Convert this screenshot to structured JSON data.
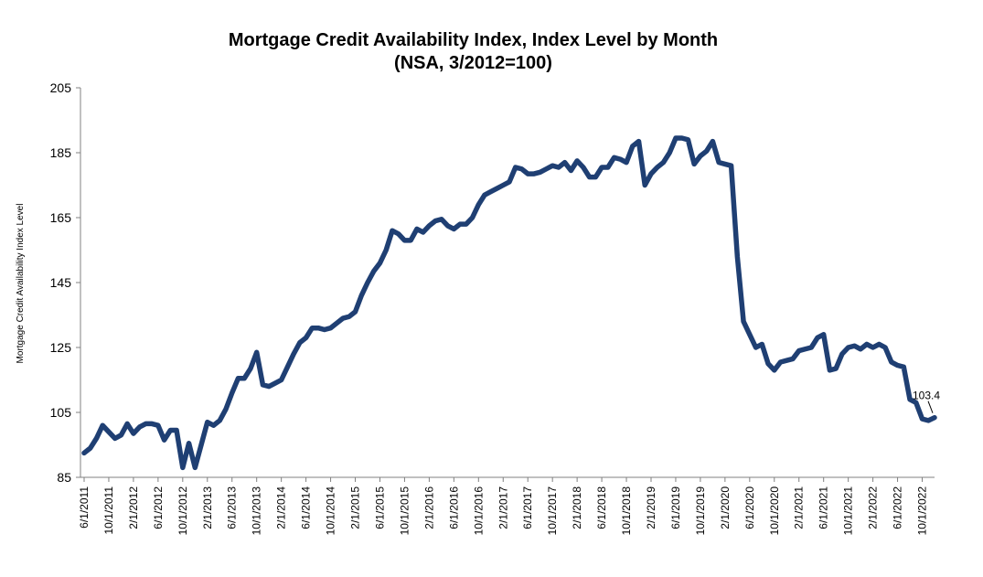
{
  "chart_data": {
    "type": "line",
    "title": "Mortgage Credit Availability Index, Index Level by Month",
    "subtitle": "(NSA, 3/2012=100)",
    "ylabel": "Mortgage Credit Availability Index Level",
    "xlabel": "",
    "ylim": [
      85,
      205
    ],
    "yticks": [
      85,
      105,
      125,
      145,
      165,
      185,
      205
    ],
    "x_start": "6/1/2011",
    "xtick_labels": [
      "6/1/2011",
      "10/1/2011",
      "2/1/2012",
      "6/1/2012",
      "10/1/2012",
      "2/1/2013",
      "6/1/2013",
      "10/1/2013",
      "2/1/2014",
      "6/1/2014",
      "10/1/2014",
      "2/1/2015",
      "6/1/2015",
      "10/1/2015",
      "2/1/2016",
      "6/1/2016",
      "10/1/2016",
      "2/1/2017",
      "6/1/2017",
      "10/1/2017",
      "2/1/2018",
      "6/1/2018",
      "10/1/2018",
      "2/1/2019",
      "6/1/2019",
      "10/1/2019",
      "2/1/2020",
      "6/1/2020",
      "10/1/2020",
      "2/1/2021",
      "6/1/2021",
      "10/1/2021",
      "2/1/2022",
      "6/1/2022",
      "10/1/2022"
    ],
    "grid": false,
    "line_color": "#1f3f73",
    "series": [
      {
        "values": [
          92.5,
          94,
          97,
          101,
          99,
          97,
          98,
          101.5,
          98.5,
          100.5,
          101.5,
          101.5,
          101,
          96.5,
          99.5,
          99.5,
          88,
          95.5,
          88,
          95,
          102,
          101,
          102.5,
          106,
          111,
          115.5,
          115.5,
          118.5,
          123.5,
          113.5,
          113,
          114,
          115,
          119,
          123,
          126.5,
          128,
          131,
          131,
          130.5,
          131,
          132.5,
          134,
          134.5,
          136,
          141,
          145,
          148.5,
          151,
          155,
          161,
          160,
          158,
          158,
          161.5,
          160.5,
          162.5,
          164,
          164.5,
          162.5,
          161.5,
          163,
          163,
          165,
          169,
          172,
          173,
          174,
          175,
          176,
          180.5,
          180,
          178.5,
          178.5,
          179,
          180,
          181,
          180.5,
          182,
          179.5,
          182.5,
          180.5,
          177.5,
          177.5,
          180.5,
          180.5,
          183.5,
          183,
          182,
          187,
          188.5,
          175,
          178.5,
          180.5,
          182,
          185,
          189.5,
          189.5,
          189,
          181.5,
          184,
          185.5,
          188.5,
          182,
          181.5,
          181,
          153,
          133,
          129,
          125,
          126,
          120,
          118,
          120.5,
          121,
          121.5,
          124,
          124.5,
          125,
          128,
          129,
          118,
          118.5,
          123,
          125,
          125.5,
          124.5,
          126,
          125,
          126,
          125,
          120.5,
          119.5,
          119,
          109,
          108,
          103,
          102.5,
          103.4
        ],
        "annotation": "103.4"
      }
    ]
  }
}
